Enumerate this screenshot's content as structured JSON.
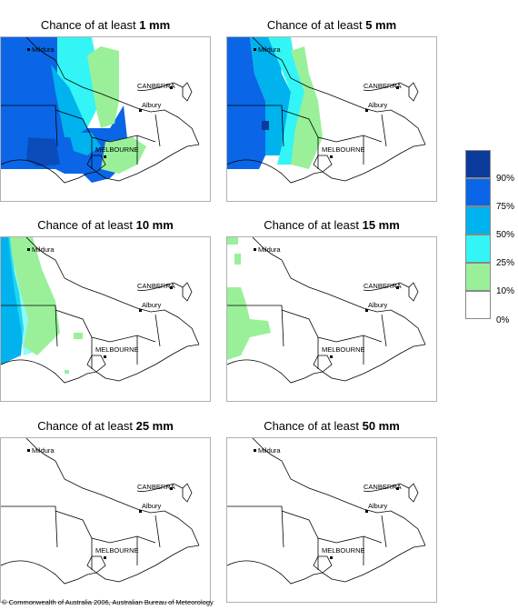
{
  "colors": {
    "c90": "#0b3a9c",
    "c75": "#0a66e6",
    "c50": "#00b2ee",
    "c25": "#33f5f5",
    "c10": "#99f099",
    "c0": "#ffffff",
    "boundary": "#000000"
  },
  "places": {
    "mildura": "Mildura",
    "canberra": "CANBERRA",
    "albury": "Albury",
    "melbourne": "MELBOURNE"
  },
  "legend": {
    "items": [
      {
        "label": "90%",
        "color": "#0b3a9c"
      },
      {
        "label": "75%",
        "color": "#0a66e6"
      },
      {
        "label": "50%",
        "color": "#00b2ee"
      },
      {
        "label": "25%",
        "color": "#33f5f5"
      },
      {
        "label": "10%",
        "color": "#99f099"
      },
      {
        "label": "0%",
        "color": "#ffffff"
      }
    ]
  },
  "panels": [
    {
      "prefix": "Chance of at least ",
      "amount": "1 mm"
    },
    {
      "prefix": "Chance of at least ",
      "amount": "5 mm"
    },
    {
      "prefix": "Chance of at least ",
      "amount": "10 mm"
    },
    {
      "prefix": "Chance of at least ",
      "amount": "15 mm"
    },
    {
      "prefix": "Chance of at least ",
      "amount": "25 mm"
    },
    {
      "prefix": "Chance of at least ",
      "amount": "50 mm"
    }
  ],
  "copyright": "© Commonwealth of Australia 2006, Australian Bureau of Meteorology"
}
